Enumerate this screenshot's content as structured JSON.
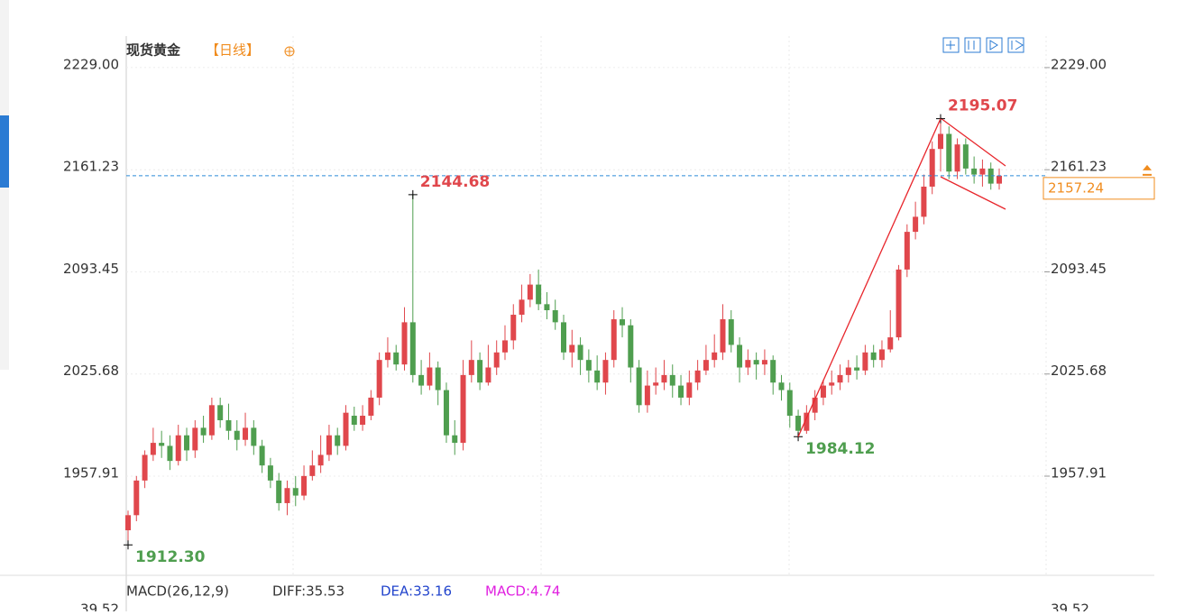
{
  "chart_data": {
    "type": "candlestick",
    "title": "现货黄金",
    "period": "【日线】",
    "up_color": "#e0474c",
    "down_color": "#4f9e4f",
    "ylim": [
      1892.1,
      2249.9
    ],
    "yticks": [
      {
        "value": 2229,
        "label": "2229.00"
      },
      2161.23,
      2093.45,
      2025.68,
      1957.91
    ],
    "grid": true,
    "open": [
      1922,
      1932,
      1955,
      1972,
      1980,
      1978,
      1968,
      1985,
      1975,
      1990,
      1985,
      2005,
      1995,
      1988,
      1982,
      1990,
      1978,
      1965,
      1955,
      1940,
      1950,
      1945,
      1958,
      1965,
      1972,
      1985,
      1978,
      1998,
      1992,
      1998,
      2010,
      2035,
      2040,
      2032,
      2060,
      2025,
      2018,
      2030,
      2015,
      1985,
      1980,
      2025,
      2035,
      2020,
      2030,
      2040,
      2048,
      2065,
      2075,
      2085,
      2072,
      2068,
      2060,
      2040,
      2045,
      2035,
      2028,
      2020,
      2035,
      2062,
      2058,
      2030,
      2005,
      2018,
      2020,
      2025,
      2018,
      2010,
      2020,
      2028,
      2035,
      2040,
      2062,
      2045,
      2030,
      2035,
      2032,
      2035,
      2020,
      2015,
      1998,
      1988,
      2000,
      2010,
      2018,
      2020,
      2025,
      2030,
      2028,
      2040,
      2035,
      2042,
      2050,
      2095,
      2120,
      2130,
      2150,
      2175,
      2185,
      2160,
      2178,
      2162,
      2158,
      2162,
      2152
    ],
    "high": [
      1935,
      1958,
      1975,
      1990,
      1988,
      1985,
      1992,
      1990,
      1995,
      1998,
      2010,
      2010,
      2006,
      1995,
      2000,
      1995,
      1982,
      1970,
      1960,
      1955,
      1958,
      1965,
      1975,
      1985,
      1992,
      1990,
      2005,
      2004,
      2005,
      2015,
      2040,
      2050,
      2045,
      2070,
      2144.68,
      2035,
      2040,
      2034,
      2020,
      1995,
      2035,
      2048,
      2040,
      2045,
      2048,
      2058,
      2072,
      2085,
      2092,
      2095,
      2080,
      2075,
      2065,
      2055,
      2050,
      2042,
      2038,
      2040,
      2068,
      2070,
      2062,
      2035,
      2028,
      2030,
      2035,
      2032,
      2025,
      2028,
      2035,
      2045,
      2052,
      2072,
      2068,
      2050,
      2042,
      2040,
      2042,
      2038,
      2025,
      2020,
      2002,
      2005,
      2015,
      2022,
      2028,
      2032,
      2035,
      2038,
      2045,
      2045,
      2048,
      2068,
      2098,
      2125,
      2140,
      2158,
      2180,
      2195.07,
      2190,
      2182,
      2182,
      2170,
      2168,
      2166,
      2162
    ],
    "low": [
      1912.3,
      1928,
      1950,
      1968,
      1970,
      1962,
      1965,
      1968,
      1970,
      1980,
      1982,
      1990,
      1982,
      1975,
      1978,
      1972,
      1960,
      1950,
      1935,
      1932,
      1938,
      1942,
      1955,
      1960,
      1968,
      1972,
      1975,
      1988,
      1988,
      1995,
      2005,
      2030,
      2028,
      2028,
      2020,
      2012,
      2015,
      2005,
      1980,
      1972,
      1975,
      2020,
      2015,
      2018,
      2025,
      2035,
      2042,
      2060,
      2070,
      2068,
      2062,
      2055,
      2035,
      2030,
      2025,
      2020,
      2015,
      2012,
      2030,
      2050,
      2020,
      2000,
      2000,
      2012,
      2015,
      2010,
      2005,
      2005,
      2015,
      2025,
      2030,
      2035,
      2040,
      2020,
      2025,
      2022,
      2025,
      2012,
      2008,
      1990,
      1984.12,
      1986,
      1995,
      2005,
      2012,
      2015,
      2020,
      2022,
      2025,
      2030,
      2030,
      2040,
      2048,
      2090,
      2115,
      2125,
      2145,
      2160,
      2155,
      2155,
      2158,
      2152,
      2150,
      2148,
      2148
    ],
    "close": [
      1932,
      1955,
      1972,
      1980,
      1978,
      1968,
      1985,
      1975,
      1990,
      1985,
      2005,
      1995,
      1988,
      1982,
      1990,
      1978,
      1965,
      1955,
      1940,
      1950,
      1945,
      1958,
      1965,
      1972,
      1985,
      1978,
      2000,
      1992,
      1998,
      2010,
      2035,
      2040,
      2032,
      2060,
      2025,
      2018,
      2030,
      2015,
      1985,
      1980,
      2025,
      2035,
      2020,
      2030,
      2040,
      2048,
      2065,
      2075,
      2085,
      2072,
      2068,
      2060,
      2040,
      2045,
      2035,
      2028,
      2020,
      2035,
      2062,
      2058,
      2030,
      2005,
      2018,
      2020,
      2025,
      2018,
      2010,
      2020,
      2028,
      2035,
      2040,
      2062,
      2045,
      2030,
      2035,
      2032,
      2035,
      2020,
      2015,
      1998,
      1988,
      2000,
      2010,
      2018,
      2020,
      2025,
      2030,
      2028,
      2040,
      2035,
      2042,
      2050,
      2095,
      2120,
      2130,
      2150,
      2175,
      2185,
      2160,
      2178,
      2162,
      2158,
      2162,
      2152,
      2157.24
    ],
    "annotations": [
      {
        "value": 1912.3,
        "label": "1912.30",
        "color": "#4f9e4f"
      },
      {
        "value": 2144.68,
        "color": "#e0474c"
      },
      {
        "value": 1984.12,
        "color": "#4f9e4f"
      },
      {
        "value": 2195.07,
        "color": "#e0474c"
      }
    ],
    "macd": {
      "name": "MACD(26,12,9)",
      "diff": "DIFF:35.53",
      "dea": "DEA:33.16",
      "macd": "MACD:4.74",
      "top_tick": "39.52"
    }
  }
}
